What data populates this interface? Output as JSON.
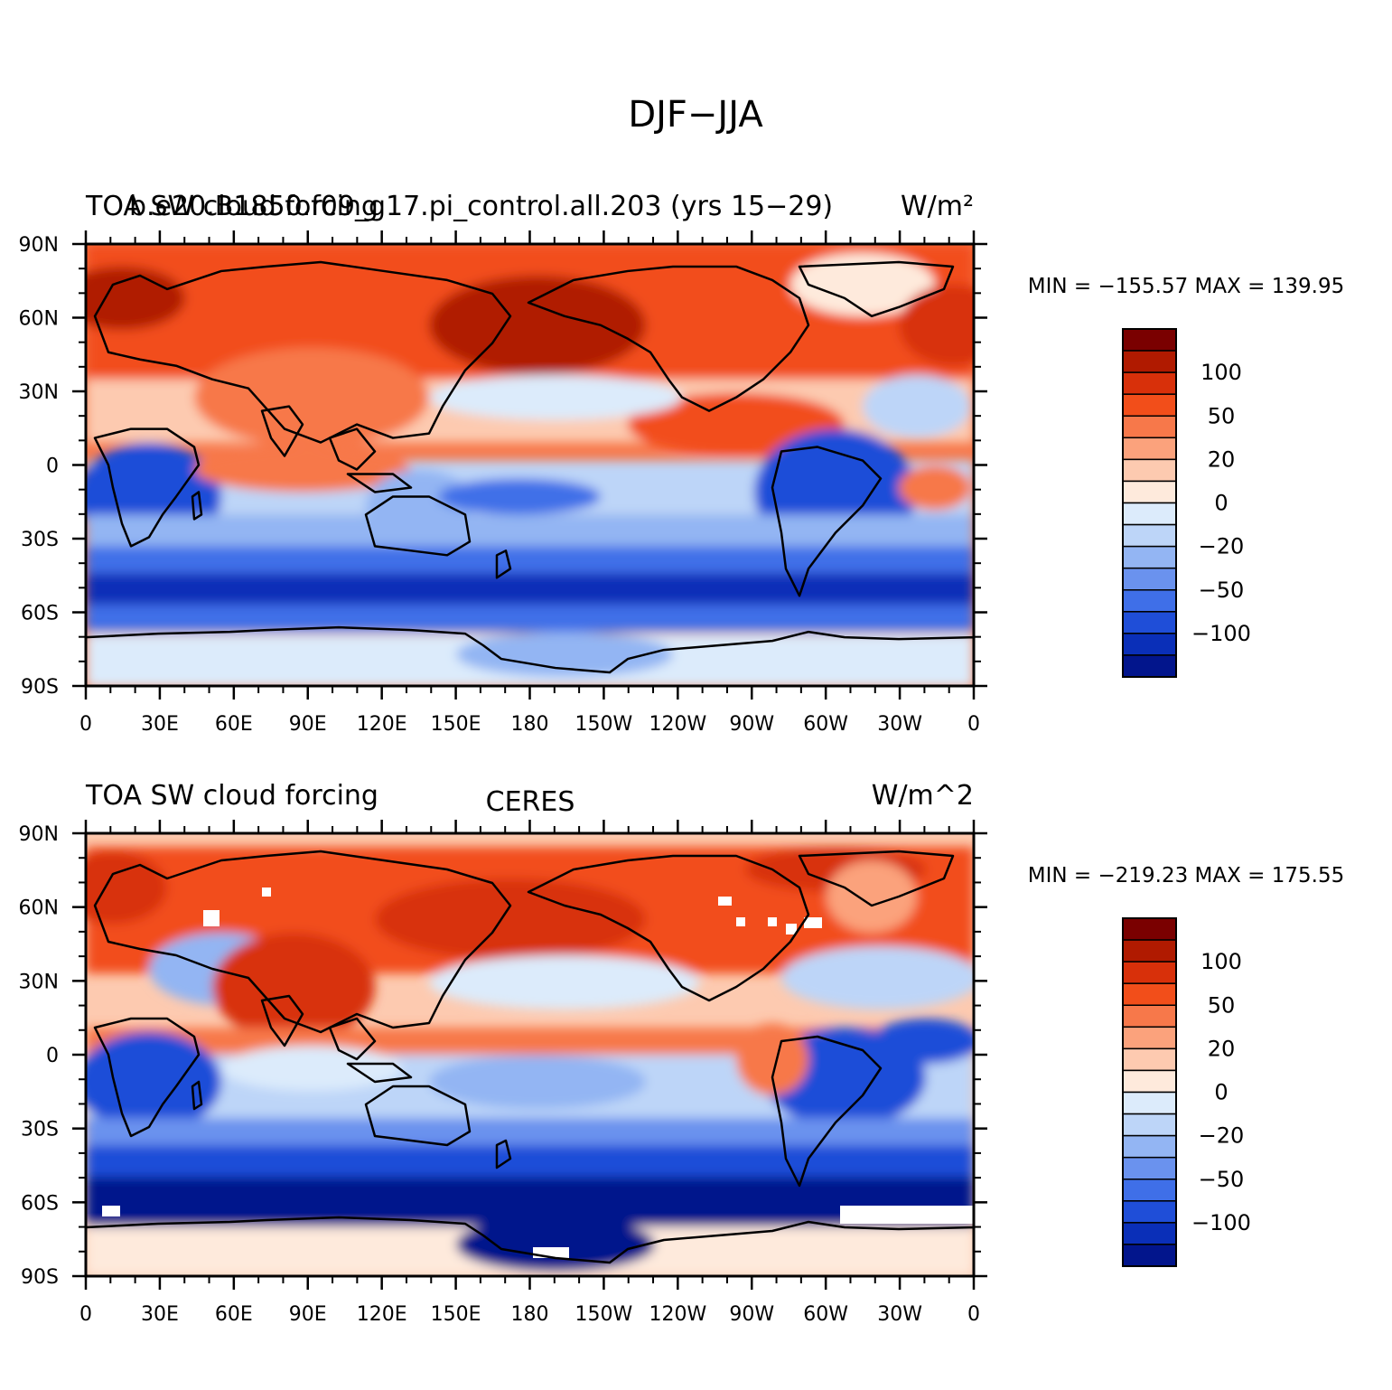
{
  "figure": {
    "title": "DJF−JJA",
    "axes": {
      "lon_ticks": [
        "0",
        "30E",
        "60E",
        "90E",
        "120E",
        "150E",
        "180",
        "150W",
        "120W",
        "90W",
        "60W",
        "30W",
        "0"
      ],
      "lat_ticks": [
        "90N",
        "60N",
        "30N",
        "0",
        "30S",
        "60S",
        "90S"
      ]
    },
    "colorbar": {
      "labels": [
        "100",
        "50",
        "20",
        "0",
        "−20",
        "−50",
        "−100"
      ],
      "colors_top_to_bottom": [
        "#7a0000",
        "#b01a00",
        "#d8300a",
        "#f24e1a",
        "#f7784a",
        "#fba27c",
        "#fdcab0",
        "#feeadc",
        "#dcebfb",
        "#bdd5f8",
        "#93b5f3",
        "#6a92ee",
        "#3f6fe8",
        "#1f4ed8",
        "#0a2fb8",
        "#02158c"
      ]
    },
    "panels": [
      {
        "id": "model",
        "left_title": "TOA SW cloud forcing",
        "overlay_title": "b.e20.B1850.f09_g17.pi_control.all.203 (yrs 15−29)",
        "right_title": "W/m²",
        "stats": "MIN = −155.57  MAX = 139.95"
      },
      {
        "id": "obs",
        "left_title": "TOA SW cloud forcing",
        "center_title": "CERES",
        "right_title": "W/m^2",
        "stats": "MIN = −219.23  MAX = 175.55"
      }
    ]
  }
}
